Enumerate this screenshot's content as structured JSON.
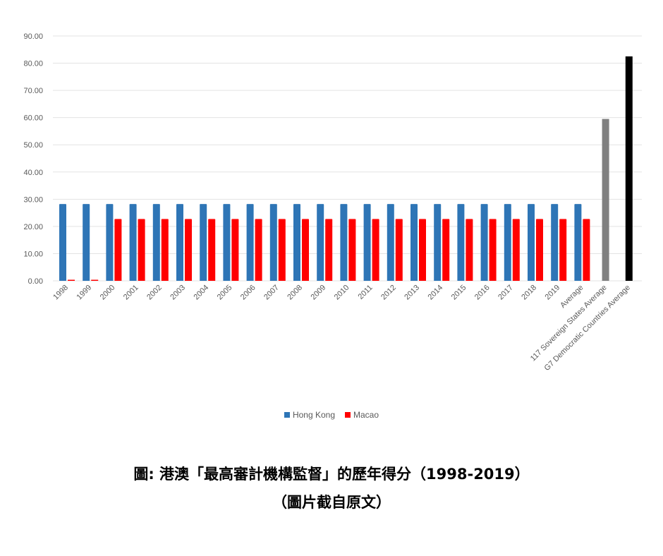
{
  "chart_data": {
    "type": "bar",
    "categories": [
      "1998",
      "1999",
      "2000",
      "2001",
      "2002",
      "2003",
      "2004",
      "2005",
      "2006",
      "2007",
      "2008",
      "2009",
      "2010",
      "2011",
      "2012",
      "2013",
      "2014",
      "2015",
      "2016",
      "2017",
      "2018",
      "2019",
      "Average",
      "117 Sovereign States Average",
      "G7 Democratic Countries Average"
    ],
    "series": [
      {
        "name": "Hong Kong",
        "color": "#2E75B6",
        "values": [
          28,
          28,
          28,
          28,
          28,
          28,
          28,
          28,
          28,
          28,
          28,
          28,
          28,
          28,
          28,
          28,
          28,
          28,
          28,
          28,
          28,
          28,
          28,
          null,
          null
        ]
      },
      {
        "name": "Macao",
        "color": "#FF0000",
        "values": [
          0,
          0,
          22.5,
          22.5,
          22.5,
          22.5,
          22.5,
          22.5,
          22.5,
          22.5,
          22.5,
          22.5,
          22.5,
          22.5,
          22.5,
          22.5,
          22.5,
          22.5,
          22.5,
          22.5,
          22.5,
          22.5,
          22.5,
          null,
          null
        ]
      }
    ],
    "comparison_bars": [
      {
        "category": "117 Sovereign States Average",
        "value": 59.5,
        "color": "#808080"
      },
      {
        "category": "G7 Democratic Countries Average",
        "value": 82.5,
        "color": "#000000"
      }
    ],
    "yticks": [
      "0.00",
      "10.00",
      "20.00",
      "30.00",
      "40.00",
      "50.00",
      "60.00",
      "70.00",
      "80.00",
      "90.00"
    ],
    "ylim": [
      0,
      90
    ],
    "grid": true,
    "legend_position": "bottom"
  },
  "captions": {
    "line1": "圖: 港澳「最高審計機構監督」的歷年得分（1998-2019）",
    "line2": "（圖片截自原文）"
  }
}
